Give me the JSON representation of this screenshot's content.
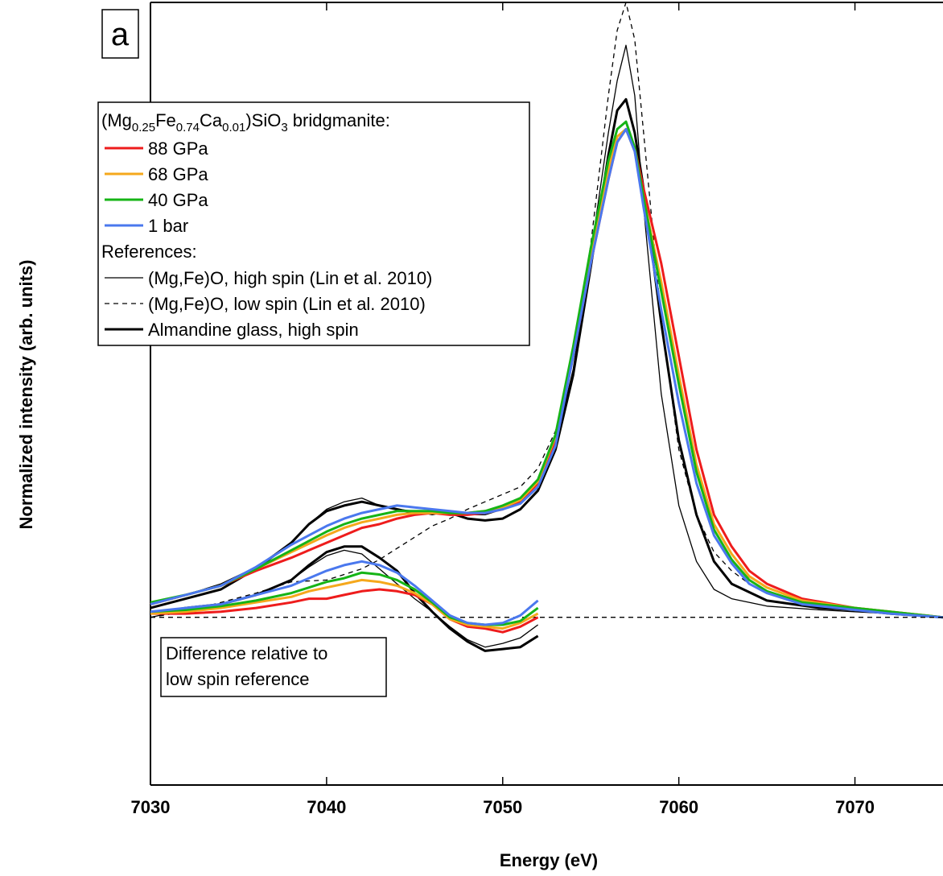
{
  "chart_data": {
    "type": "line",
    "panel_label": "a",
    "xlabel": "Energy (eV)",
    "ylabel": "Normalized intensity (arb. units)",
    "xlim": [
      7030,
      7075
    ],
    "ylim": [
      -0.9,
      3.3
    ],
    "x_ticks": [
      7030,
      7040,
      7050,
      7060,
      7070
    ],
    "grid": false,
    "legend": {
      "placement": "top-left",
      "title_parts": {
        "p1": "(Mg",
        "s1": "0.25",
        "p2": "Fe",
        "s2": "0.74",
        "p3": "Ca",
        "s3": "0.01",
        "p4": ")SiO",
        "s4": "3",
        "p5": " bridgmanite:"
      },
      "references_label": "References:",
      "entries": [
        {
          "key": "p88",
          "label": "88 GPa"
        },
        {
          "key": "p68",
          "label": "68 GPa"
        },
        {
          "key": "p40",
          "label": "40 GPa"
        },
        {
          "key": "p1bar",
          "label": "1 bar"
        },
        {
          "key": "hs",
          "label": "(Mg,Fe)O, high spin (Lin et al. 2010)"
        },
        {
          "key": "ls",
          "label": "(Mg,Fe)O, low spin (Lin et al. 2010)"
        },
        {
          "key": "alm",
          "label": "Almandine glass, high spin"
        }
      ]
    },
    "annotation": {
      "line1": "Difference relative to",
      "line2": "low spin reference"
    },
    "series": [
      {
        "key": "hs",
        "color": "#000000",
        "width": 1.3,
        "dash": "",
        "x": [
          7030,
          7032,
          7034,
          7036,
          7038,
          7039,
          7040,
          7041,
          7042,
          7043,
          7044,
          7045,
          7046,
          7047,
          7048,
          7049,
          7050,
          7051,
          7052,
          7053,
          7054,
          7055,
          7056,
          7056.5,
          7057,
          7057.5,
          7058,
          7059,
          7060,
          7061,
          7062,
          7063,
          7065,
          7068,
          7070,
          7072,
          7075
        ],
        "y": [
          0.08,
          0.12,
          0.18,
          0.27,
          0.4,
          0.5,
          0.58,
          0.62,
          0.64,
          0.6,
          0.58,
          0.57,
          0.55,
          0.57,
          0.55,
          0.55,
          0.58,
          0.62,
          0.72,
          0.93,
          1.33,
          1.95,
          2.6,
          2.88,
          3.07,
          2.8,
          2.2,
          1.2,
          0.6,
          0.3,
          0.15,
          0.1,
          0.06,
          0.04,
          0.03,
          0.02,
          0.0
        ]
      },
      {
        "key": "ls",
        "color": "#000000",
        "width": 1.3,
        "dash": "6,5",
        "x": [
          7030,
          7032,
          7034,
          7036,
          7038,
          7040,
          7041,
          7042,
          7043,
          7044,
          7045,
          7046,
          7047,
          7048,
          7049,
          7050,
          7051,
          7052,
          7053,
          7054,
          7055,
          7056,
          7056.5,
          7057,
          7057.5,
          7058,
          7059,
          7060,
          7061,
          7062,
          7063,
          7064,
          7065,
          7067,
          7070,
          7072,
          7075
        ],
        "y": [
          0.0,
          0.03,
          0.08,
          0.13,
          0.19,
          0.2,
          0.23,
          0.26,
          0.31,
          0.37,
          0.43,
          0.49,
          0.53,
          0.58,
          0.62,
          0.66,
          0.7,
          0.8,
          1.0,
          1.4,
          2.0,
          2.8,
          3.15,
          3.3,
          3.1,
          2.6,
          1.6,
          0.9,
          0.55,
          0.35,
          0.25,
          0.18,
          0.13,
          0.08,
          0.05,
          0.03,
          0.0
        ]
      },
      {
        "key": "alm",
        "color": "#000000",
        "width": 3.0,
        "dash": "",
        "x": [
          7030,
          7032,
          7034,
          7036,
          7038,
          7039,
          7040,
          7041,
          7042,
          7043,
          7044,
          7045,
          7046,
          7047,
          7048,
          7049,
          7050,
          7051,
          7052,
          7053,
          7054,
          7055,
          7056,
          7056.5,
          7057,
          7057.5,
          7058,
          7059,
          7060,
          7061,
          7062,
          7063,
          7065,
          7068,
          7070,
          7072,
          7075
        ],
        "y": [
          0.05,
          0.1,
          0.15,
          0.26,
          0.4,
          0.5,
          0.57,
          0.6,
          0.62,
          0.6,
          0.58,
          0.56,
          0.56,
          0.56,
          0.53,
          0.52,
          0.53,
          0.58,
          0.68,
          0.9,
          1.3,
          1.88,
          2.48,
          2.72,
          2.78,
          2.6,
          2.3,
          1.58,
          0.95,
          0.55,
          0.3,
          0.18,
          0.09,
          0.05,
          0.04,
          0.02,
          0.0
        ]
      },
      {
        "key": "p88",
        "color": "#ee1c1c",
        "width": 3.0,
        "dash": "",
        "x": [
          7030,
          7032,
          7034,
          7036,
          7038,
          7040,
          7041,
          7042,
          7043,
          7044,
          7045,
          7046,
          7047,
          7048,
          7049,
          7050,
          7051,
          7052,
          7053,
          7054,
          7055,
          7056,
          7056.5,
          7057,
          7057.5,
          7058,
          7059,
          7060,
          7061,
          7062,
          7063,
          7064,
          7065,
          7067,
          7070,
          7072,
          7075
        ],
        "y": [
          0.07,
          0.12,
          0.17,
          0.25,
          0.32,
          0.4,
          0.44,
          0.48,
          0.5,
          0.53,
          0.55,
          0.56,
          0.55,
          0.55,
          0.56,
          0.58,
          0.62,
          0.72,
          0.95,
          1.4,
          1.9,
          2.35,
          2.55,
          2.62,
          2.52,
          2.3,
          1.9,
          1.4,
          0.9,
          0.55,
          0.38,
          0.25,
          0.18,
          0.1,
          0.05,
          0.03,
          0.0
        ]
      },
      {
        "key": "p68",
        "color": "#f5a81c",
        "width": 3.0,
        "dash": "",
        "x": [
          7030,
          7032,
          7034,
          7036,
          7038,
          7040,
          7041,
          7042,
          7043,
          7044,
          7045,
          7046,
          7047,
          7048,
          7049,
          7050,
          7051,
          7052,
          7053,
          7054,
          7055,
          7056,
          7056.5,
          7057,
          7057.5,
          7058,
          7059,
          7060,
          7061,
          7062,
          7063,
          7064,
          7065,
          7067,
          7070,
          7072,
          7075
        ],
        "y": [
          0.07,
          0.12,
          0.17,
          0.26,
          0.35,
          0.44,
          0.48,
          0.51,
          0.53,
          0.55,
          0.56,
          0.56,
          0.56,
          0.56,
          0.57,
          0.59,
          0.63,
          0.73,
          0.97,
          1.42,
          1.94,
          2.4,
          2.58,
          2.62,
          2.5,
          2.25,
          1.8,
          1.3,
          0.82,
          0.5,
          0.34,
          0.22,
          0.16,
          0.09,
          0.05,
          0.03,
          0.0
        ]
      },
      {
        "key": "p40",
        "color": "#16b416",
        "width": 3.0,
        "dash": "",
        "x": [
          7030,
          7032,
          7034,
          7036,
          7038,
          7040,
          7041,
          7042,
          7043,
          7044,
          7045,
          7046,
          7047,
          7048,
          7049,
          7050,
          7051,
          7052,
          7053,
          7054,
          7055,
          7056,
          7056.5,
          7057,
          7057.5,
          7058,
          7059,
          7060,
          7061,
          7062,
          7063,
          7064,
          7065,
          7067,
          7070,
          7072,
          7075
        ],
        "y": [
          0.08,
          0.12,
          0.17,
          0.26,
          0.36,
          0.46,
          0.5,
          0.53,
          0.55,
          0.57,
          0.57,
          0.57,
          0.56,
          0.56,
          0.57,
          0.6,
          0.64,
          0.74,
          0.98,
          1.45,
          1.98,
          2.45,
          2.62,
          2.66,
          2.52,
          2.25,
          1.75,
          1.25,
          0.78,
          0.47,
          0.31,
          0.2,
          0.14,
          0.08,
          0.05,
          0.03,
          0.0
        ]
      },
      {
        "key": "p1bar",
        "color": "#4a78ee",
        "width": 3.0,
        "dash": "",
        "x": [
          7030,
          7032,
          7034,
          7036,
          7038,
          7040,
          7041,
          7042,
          7043,
          7044,
          7045,
          7046,
          7047,
          7048,
          7049,
          7050,
          7051,
          7052,
          7053,
          7054,
          7055,
          7056,
          7056.5,
          7057,
          7057.5,
          7058,
          7059,
          7060,
          7061,
          7062,
          7063,
          7064,
          7065,
          7067,
          7070,
          7072,
          7075
        ],
        "y": [
          0.07,
          0.12,
          0.17,
          0.27,
          0.39,
          0.49,
          0.53,
          0.56,
          0.58,
          0.6,
          0.59,
          0.58,
          0.57,
          0.56,
          0.56,
          0.58,
          0.61,
          0.7,
          0.92,
          1.4,
          1.9,
          2.35,
          2.55,
          2.62,
          2.5,
          2.2,
          1.65,
          1.15,
          0.72,
          0.44,
          0.29,
          0.18,
          0.13,
          0.07,
          0.04,
          0.02,
          0.0
        ]
      },
      {
        "key": "zero",
        "color": "#000000",
        "width": 1.3,
        "dash": "6,5",
        "x": [
          7030,
          7075
        ],
        "y": [
          0.0,
          0.0
        ]
      },
      {
        "key": "d_hs",
        "color": "#000000",
        "width": 1.3,
        "dash": "",
        "x": [
          7030,
          7032,
          7034,
          7036,
          7038,
          7039,
          7040,
          7041,
          7042,
          7043,
          7044,
          7045,
          7046,
          7047,
          7048,
          7049,
          7050,
          7051,
          7052
        ],
        "y": [
          0.0,
          0.04,
          0.07,
          0.12,
          0.2,
          0.27,
          0.33,
          0.36,
          0.34,
          0.26,
          0.18,
          0.1,
          0.03,
          -0.05,
          -0.12,
          -0.16,
          -0.14,
          -0.11,
          -0.04
        ]
      },
      {
        "key": "d_alm",
        "color": "#000000",
        "width": 3.0,
        "dash": "",
        "x": [
          7030,
          7032,
          7034,
          7036,
          7038,
          7039,
          7040,
          7041,
          7042,
          7043,
          7044,
          7045,
          7046,
          7047,
          7048,
          7049,
          7050,
          7051,
          7052
        ],
        "y": [
          0.02,
          0.05,
          0.07,
          0.12,
          0.2,
          0.28,
          0.35,
          0.38,
          0.38,
          0.32,
          0.25,
          0.13,
          0.03,
          -0.06,
          -0.13,
          -0.18,
          -0.17,
          -0.16,
          -0.1
        ]
      },
      {
        "key": "d_88",
        "color": "#ee1c1c",
        "width": 3.0,
        "dash": "",
        "x": [
          7030,
          7032,
          7034,
          7036,
          7038,
          7039,
          7040,
          7041,
          7042,
          7043,
          7044,
          7045,
          7046,
          7047,
          7048,
          7049,
          7050,
          7051,
          7052
        ],
        "y": [
          0.02,
          0.02,
          0.03,
          0.05,
          0.08,
          0.1,
          0.1,
          0.12,
          0.14,
          0.15,
          0.14,
          0.12,
          0.07,
          -0.01,
          -0.05,
          -0.06,
          -0.08,
          -0.05,
          0.0
        ]
      },
      {
        "key": "d_68",
        "color": "#f5a81c",
        "width": 3.0,
        "dash": "",
        "x": [
          7030,
          7032,
          7034,
          7036,
          7038,
          7039,
          7040,
          7041,
          7042,
          7043,
          7044,
          7045,
          7046,
          7047,
          7048,
          7049,
          7050,
          7051,
          7052
        ],
        "y": [
          0.02,
          0.03,
          0.05,
          0.08,
          0.11,
          0.14,
          0.16,
          0.18,
          0.2,
          0.19,
          0.17,
          0.13,
          0.07,
          -0.01,
          -0.04,
          -0.05,
          -0.06,
          -0.03,
          0.02
        ]
      },
      {
        "key": "d_40",
        "color": "#16b416",
        "width": 3.0,
        "dash": "",
        "x": [
          7030,
          7032,
          7034,
          7036,
          7038,
          7039,
          7040,
          7041,
          7042,
          7043,
          7044,
          7045,
          7046,
          7047,
          7048,
          7049,
          7050,
          7051,
          7052
        ],
        "y": [
          0.03,
          0.04,
          0.06,
          0.09,
          0.13,
          0.16,
          0.19,
          0.21,
          0.24,
          0.23,
          0.2,
          0.15,
          0.08,
          0.0,
          -0.03,
          -0.04,
          -0.04,
          -0.02,
          0.05
        ]
      },
      {
        "key": "d_1bar",
        "color": "#4a78ee",
        "width": 3.0,
        "dash": "",
        "x": [
          7030,
          7032,
          7034,
          7036,
          7038,
          7039,
          7040,
          7041,
          7042,
          7043,
          7044,
          7045,
          7046,
          7047,
          7048,
          7049,
          7050,
          7051,
          7052
        ],
        "y": [
          0.03,
          0.05,
          0.07,
          0.12,
          0.17,
          0.21,
          0.25,
          0.28,
          0.3,
          0.28,
          0.24,
          0.17,
          0.09,
          0.01,
          -0.03,
          -0.04,
          -0.03,
          0.01,
          0.09
        ]
      }
    ]
  }
}
